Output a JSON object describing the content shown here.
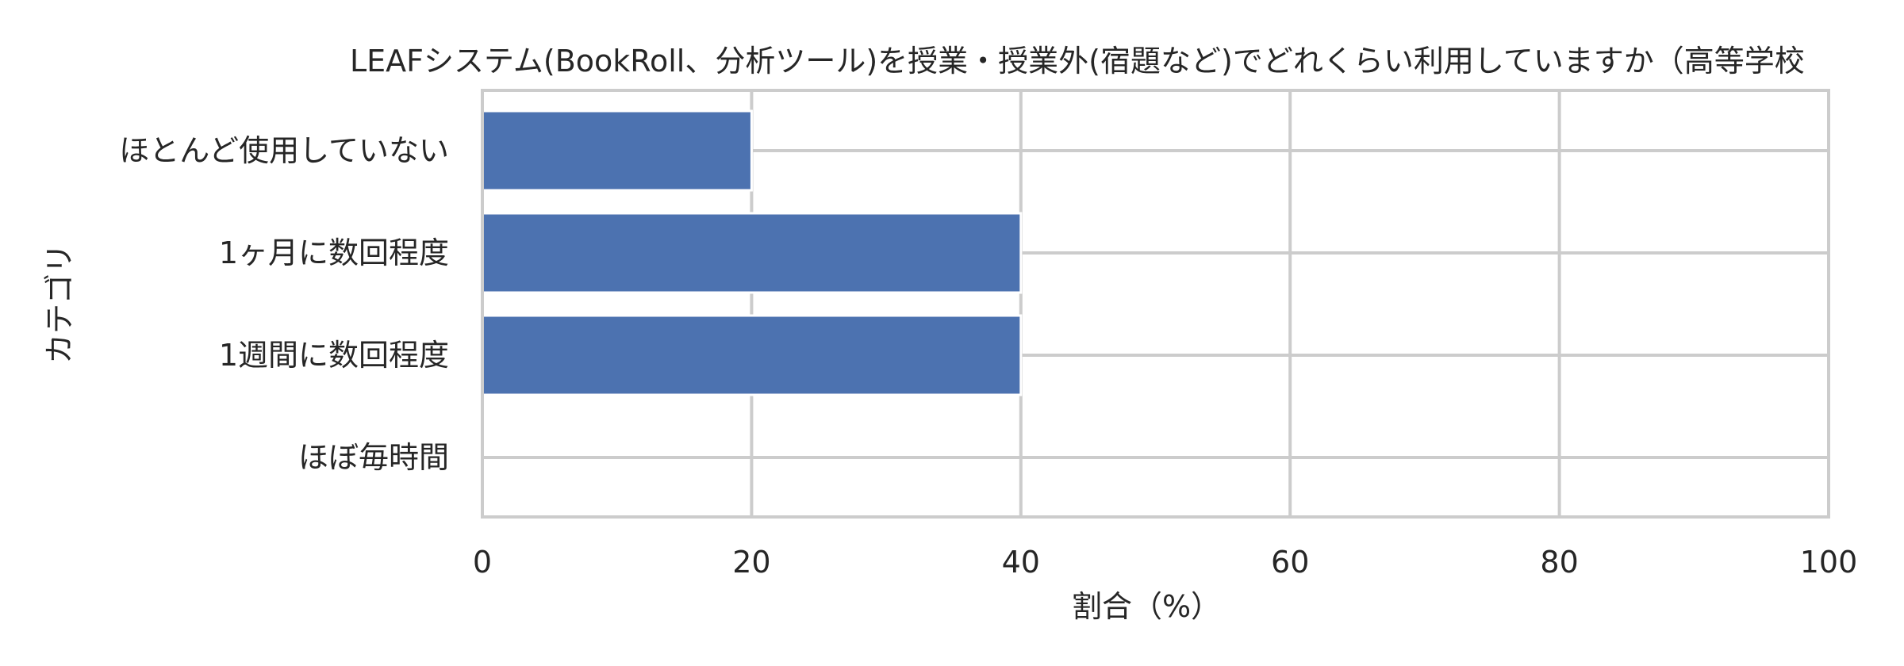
{
  "chart_data": {
    "type": "bar",
    "orientation": "horizontal",
    "title": "LEAFシステム(BookRoll、分析ツール)を授業・授業外(宿題など)でどれくらい利用していますか（高等学校",
    "xlabel": "割合（%）",
    "ylabel": "カテゴリ",
    "categories": [
      "ほとんど使用していない",
      "1ヶ月に数回程度",
      "1週間に数回程度",
      "ほぼ毎時間"
    ],
    "values": [
      20,
      40,
      40,
      0
    ],
    "xlim": [
      0,
      100
    ],
    "xticks": [
      0,
      20,
      40,
      60,
      80,
      100
    ],
    "grid": true,
    "bar_color": "#4c72b0"
  }
}
